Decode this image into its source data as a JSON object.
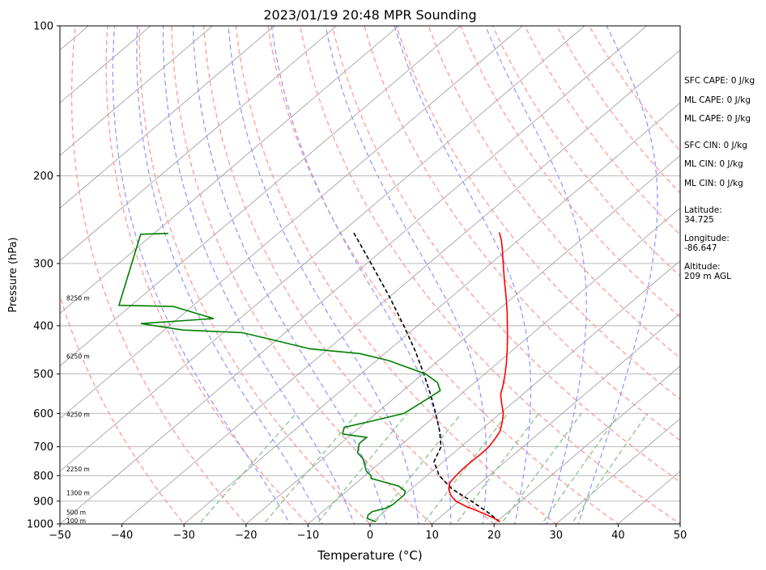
{
  "chart_data": {
    "type": "line",
    "title": "2023/01/19 20:48 MPR Sounding",
    "xlabel": "Temperature (°C)",
    "ylabel": "Pressure (hPa)",
    "xlim": [
      -50,
      50
    ],
    "ylim": [
      1000,
      100
    ],
    "yscale": "log",
    "skew": "skew-T log-p",
    "grid": true,
    "x_ticks": [
      -50,
      -40,
      -30,
      -20,
      -10,
      0,
      10,
      20,
      30,
      40,
      50
    ],
    "x_tick_labels": [
      "−50",
      "−40",
      "−30",
      "−20",
      "−10",
      "0",
      "10",
      "20",
      "30",
      "40",
      "50"
    ],
    "y_ticks": [
      1000,
      900,
      800,
      700,
      600,
      500,
      400,
      300,
      200,
      100
    ],
    "y_tick_labels": [
      "1000",
      "900",
      "800",
      "700",
      "600",
      "500",
      "400",
      "300",
      "200",
      "100"
    ],
    "height_labels": [
      {
        "text": "100 m",
        "p": 988
      },
      {
        "text": "500 m",
        "p": 950
      },
      {
        "text": "1300 m",
        "p": 869
      },
      {
        "text": "2250 m",
        "p": 778
      },
      {
        "text": "4250 m",
        "p": 605
      },
      {
        "text": "6250 m",
        "p": 462
      },
      {
        "text": "8250 m",
        "p": 353
      }
    ],
    "series": [
      {
        "key": "temperature",
        "color": "#ff0000",
        "points": [
          [
            990,
            20.5
          ],
          [
            975,
            19
          ],
          [
            950,
            16
          ],
          [
            925,
            12.5
          ],
          [
            900,
            9.5
          ],
          [
            875,
            7.5
          ],
          [
            850,
            6
          ],
          [
            825,
            5
          ],
          [
            800,
            4.7
          ],
          [
            775,
            4.5
          ],
          [
            750,
            4.5
          ],
          [
            725,
            4.6
          ],
          [
            700,
            4.5
          ],
          [
            675,
            4
          ],
          [
            650,
            3.3
          ],
          [
            625,
            2
          ],
          [
            600,
            0.5
          ],
          [
            575,
            -1.5
          ],
          [
            550,
            -3.5
          ],
          [
            525,
            -5
          ],
          [
            500,
            -6.7
          ],
          [
            475,
            -8.6
          ],
          [
            450,
            -10.7
          ],
          [
            425,
            -13
          ],
          [
            400,
            -15.5
          ],
          [
            375,
            -18.2
          ],
          [
            350,
            -21.2
          ],
          [
            325,
            -24.5
          ],
          [
            300,
            -28
          ],
          [
            285,
            -30.2
          ],
          [
            270,
            -32.6
          ],
          [
            260,
            -34.5
          ]
        ]
      },
      {
        "key": "dewpoint",
        "color": "#008000",
        "points": [
          [
            990,
            0.5
          ],
          [
            975,
            -1.5
          ],
          [
            960,
            -2
          ],
          [
            945,
            -2
          ],
          [
            930,
            -0.5
          ],
          [
            915,
            0
          ],
          [
            900,
            0
          ],
          [
            875,
            0
          ],
          [
            860,
            -0.5
          ],
          [
            840,
            -2.5
          ],
          [
            820,
            -6.5
          ],
          [
            810,
            -8.5
          ],
          [
            800,
            -9
          ],
          [
            785,
            -10.5
          ],
          [
            770,
            -11.5
          ],
          [
            740,
            -13.5
          ],
          [
            720,
            -15.5
          ],
          [
            700,
            -16.5
          ],
          [
            690,
            -17
          ],
          [
            670,
            -17
          ],
          [
            660,
            -21.5
          ],
          [
            640,
            -22.5
          ],
          [
            620,
            -19
          ],
          [
            600,
            -15.5
          ],
          [
            580,
            -15
          ],
          [
            560,
            -14.5
          ],
          [
            540,
            -14
          ],
          [
            520,
            -16
          ],
          [
            500,
            -19.5
          ],
          [
            470,
            -28
          ],
          [
            455,
            -34
          ],
          [
            445,
            -43
          ],
          [
            425,
            -51.5
          ],
          [
            413,
            -57
          ],
          [
            408,
            -67
          ],
          [
            396,
            -75
          ],
          [
            387,
            -64.2
          ],
          [
            366,
            -73
          ],
          [
            364,
            -82
          ],
          [
            262,
            -92
          ],
          [
            261,
            -87.7
          ]
        ]
      },
      {
        "key": "parcel",
        "color": "#000000",
        "dash": "5,3",
        "points": [
          [
            990,
            20.5
          ],
          [
            950,
            17
          ],
          [
            900,
            12
          ],
          [
            850,
            6.5
          ],
          [
            800,
            2
          ],
          [
            750,
            -1.5
          ],
          [
            700,
            -3.2
          ],
          [
            650,
            -6.5
          ],
          [
            600,
            -10.4
          ],
          [
            550,
            -14.8
          ],
          [
            500,
            -19.8
          ],
          [
            450,
            -25.5
          ],
          [
            400,
            -32.2
          ],
          [
            350,
            -40
          ],
          [
            300,
            -49.3
          ],
          [
            260,
            -58
          ]
        ]
      }
    ],
    "dry_adiabats_C": [
      -30,
      -20,
      -10,
      0,
      10,
      20,
      30,
      40,
      50,
      60,
      70,
      80,
      90,
      100,
      110,
      120,
      130,
      140
    ],
    "moist_adiabats_C": [
      -10,
      -5,
      0,
      5,
      10,
      15,
      20,
      25,
      30,
      35
    ],
    "mixing_ratios_gkg": [
      0.4,
      1,
      2,
      4,
      7,
      10,
      16,
      24,
      32
    ]
  },
  "info": {
    "sfc_cape": "SFC CAPE: 0 J/kg",
    "ml_cape_1": "ML CAPE: 0 J/kg",
    "ml_cape_2": "ML CAPE: 0 J/kg",
    "sfc_cin": "SFC CIN: 0 J/kg",
    "ml_cin_1": "ML CIN: 0 J/kg",
    "ml_cin_2": "ML CIN: 0 J/kg",
    "latitude_label": "Latitude:",
    "latitude_value": "34.725",
    "longitude_label": "Longitude:",
    "longitude_value": "-86.647",
    "altitude_label": "Altitude:",
    "altitude_value": "209 m AGL"
  },
  "colors": {
    "dry_adiabat": "#ff9999",
    "moist_adiabat": "#9999ff",
    "mixing_ratio": "#88c488",
    "skewed_isotherm": "#999999",
    "isobar_grid": "#b0b0b0"
  }
}
